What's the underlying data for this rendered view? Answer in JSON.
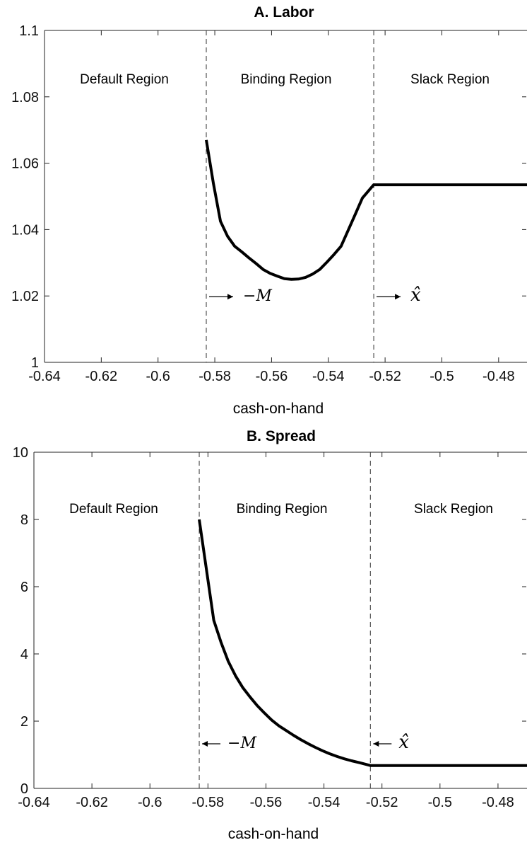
{
  "chart_data": [
    {
      "type": "line",
      "title": "A. Labor",
      "xlabel": "cash-on-hand",
      "ylabel": "",
      "xlim": [
        -0.64,
        -0.47
      ],
      "ylim": [
        1.0,
        1.1
      ],
      "xticks": [
        "-0.64",
        "-0.62",
        "-0.6",
        "-0.58",
        "-0.56",
        "-0.54",
        "-0.52",
        "-0.5",
        "-0.48"
      ],
      "yticks": [
        "1",
        "1.02",
        "1.04",
        "1.06",
        "1.08",
        "1.1"
      ],
      "grid": false,
      "vlines": [
        -0.583,
        -0.524
      ],
      "regions": [
        "Default Region",
        "Binding Region",
        "Slack Region"
      ],
      "annotations": [
        {
          "text": "−M",
          "x": -0.577,
          "y": 1.0185,
          "arrow": "right"
        },
        {
          "text": "x̂",
          "x": -0.517,
          "y": 1.0185,
          "arrow": "right"
        }
      ],
      "series": [
        {
          "x": [
            -0.583,
            -0.5805,
            -0.578,
            -0.5755,
            -0.573,
            -0.5705,
            -0.568,
            -0.5655,
            -0.563,
            -0.5605,
            -0.558,
            -0.5555,
            -0.553,
            -0.5505,
            -0.548,
            -0.5455,
            -0.543,
            -0.5405,
            -0.538,
            -0.5355,
            -0.533,
            -0.5305,
            -0.528,
            -0.524,
            -0.5,
            -0.47
          ],
          "y": [
            1.067,
            1.054,
            1.0425,
            1.038,
            1.035,
            1.0333,
            1.0315,
            1.0298,
            1.028,
            1.0268,
            1.026,
            1.0252,
            1.025,
            1.0251,
            1.0256,
            1.0266,
            1.028,
            1.0302,
            1.0325,
            1.035,
            1.0398,
            1.0446,
            1.0495,
            1.0535,
            1.0535,
            1.0535
          ]
        }
      ]
    },
    {
      "type": "line",
      "title": "B. Spread",
      "xlabel": "cash-on-hand",
      "ylabel": "",
      "xlim": [
        -0.64,
        -0.47
      ],
      "ylim": [
        0,
        10
      ],
      "xticks": [
        "-0.64",
        "-0.62",
        "-0.6",
        "-0.58",
        "-0.56",
        "-0.54",
        "-0.52",
        "-0.5",
        "-0.48"
      ],
      "yticks": [
        "0",
        "2",
        "4",
        "6",
        "8",
        "10"
      ],
      "grid": false,
      "vlines": [
        -0.583,
        -0.524
      ],
      "regions": [
        "Default Region",
        "Binding Region",
        "Slack Region"
      ],
      "annotations": [
        {
          "text": "−M",
          "x": -0.578,
          "y": 1.2,
          "arrow": "left"
        },
        {
          "text": "x̂",
          "x": -0.518,
          "y": 1.2,
          "arrow": "left"
        }
      ],
      "series": [
        {
          "x": [
            -0.583,
            -0.5805,
            -0.578,
            -0.5755,
            -0.573,
            -0.5705,
            -0.568,
            -0.5655,
            -0.563,
            -0.5605,
            -0.558,
            -0.5555,
            -0.553,
            -0.5505,
            -0.548,
            -0.5455,
            -0.543,
            -0.5405,
            -0.538,
            -0.5355,
            -0.533,
            -0.5305,
            -0.528,
            -0.524,
            -0.5,
            -0.47
          ],
          "y": [
            8.0,
            6.5,
            5.0,
            4.35,
            3.78,
            3.35,
            3.0,
            2.72,
            2.46,
            2.24,
            2.03,
            1.86,
            1.72,
            1.58,
            1.45,
            1.33,
            1.22,
            1.12,
            1.03,
            0.95,
            0.88,
            0.82,
            0.77,
            0.68,
            0.68,
            0.68
          ]
        }
      ]
    }
  ]
}
